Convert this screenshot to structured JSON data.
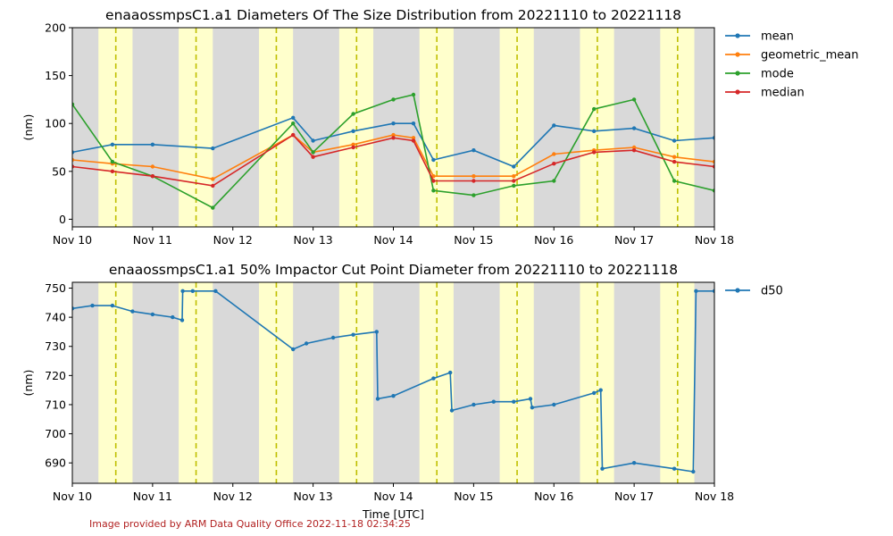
{
  "chart_data": [
    {
      "type": "line",
      "title": "enaaossmpsC1.a1 Diameters Of The Size Distribution from 20221110 to 20221118",
      "xlabel": "",
      "ylabel": "(nm)",
      "xlim": [
        "2022-11-10",
        "2022-11-18"
      ],
      "ylim": [
        -8,
        200
      ],
      "x_tick_labels": [
        "Nov 10",
        "Nov 11",
        "Nov 12",
        "Nov 13",
        "Nov 14",
        "Nov 15",
        "Nov 16",
        "Nov 17",
        "Nov 18"
      ],
      "y_ticks": [
        0,
        50,
        100,
        150,
        200
      ],
      "legend_position": "outside-right",
      "series": [
        {
          "name": "mean",
          "color": "#1f77b4",
          "values": [
            [
              "2022-11-10T00:00",
              70
            ],
            [
              "2022-11-10T12:00",
              78
            ],
            [
              "2022-11-11T00:00",
              78
            ],
            [
              "2022-11-11T18:00",
              74
            ],
            [
              "2022-11-12T18:00",
              106
            ],
            [
              "2022-11-13T00:00",
              82
            ],
            [
              "2022-11-13T12:00",
              92
            ],
            [
              "2022-11-14T00:00",
              100
            ],
            [
              "2022-11-14T06:00",
              100
            ],
            [
              "2022-11-14T12:00",
              62
            ],
            [
              "2022-11-15T00:00",
              72
            ],
            [
              "2022-11-15T12:00",
              55
            ],
            [
              "2022-11-16T00:00",
              98
            ],
            [
              "2022-11-16T12:00",
              92
            ],
            [
              "2022-11-17T00:00",
              95
            ],
            [
              "2022-11-17T12:00",
              82
            ],
            [
              "2022-11-18T00:00",
              85
            ]
          ]
        },
        {
          "name": "geometric_mean",
          "color": "#ff7f0e",
          "values": [
            [
              "2022-11-10T00:00",
              62
            ],
            [
              "2022-11-10T12:00",
              58
            ],
            [
              "2022-11-11T00:00",
              55
            ],
            [
              "2022-11-11T18:00",
              42
            ],
            [
              "2022-11-12T18:00",
              88
            ],
            [
              "2022-11-13T00:00",
              70
            ],
            [
              "2022-11-13T12:00",
              78
            ],
            [
              "2022-11-14T00:00",
              88
            ],
            [
              "2022-11-14T06:00",
              85
            ],
            [
              "2022-11-14T12:00",
              45
            ],
            [
              "2022-11-15T00:00",
              45
            ],
            [
              "2022-11-15T12:00",
              45
            ],
            [
              "2022-11-16T00:00",
              68
            ],
            [
              "2022-11-16T12:00",
              72
            ],
            [
              "2022-11-17T00:00",
              75
            ],
            [
              "2022-11-17T12:00",
              65
            ],
            [
              "2022-11-18T00:00",
              60
            ]
          ]
        },
        {
          "name": "mode",
          "color": "#2ca02c",
          "values": [
            [
              "2022-11-10T00:00",
              120
            ],
            [
              "2022-11-10T12:00",
              60
            ],
            [
              "2022-11-11T00:00",
              45
            ],
            [
              "2022-11-11T18:00",
              12
            ],
            [
              "2022-11-12T18:00",
              100
            ],
            [
              "2022-11-13T00:00",
              70
            ],
            [
              "2022-11-13T12:00",
              110
            ],
            [
              "2022-11-14T00:00",
              125
            ],
            [
              "2022-11-14T06:00",
              130
            ],
            [
              "2022-11-14T12:00",
              30
            ],
            [
              "2022-11-15T00:00",
              25
            ],
            [
              "2022-11-15T12:00",
              35
            ],
            [
              "2022-11-16T00:00",
              40
            ],
            [
              "2022-11-16T12:00",
              115
            ],
            [
              "2022-11-17T00:00",
              125
            ],
            [
              "2022-11-17T12:00",
              40
            ],
            [
              "2022-11-18T00:00",
              30
            ]
          ]
        },
        {
          "name": "median",
          "color": "#d62728",
          "values": [
            [
              "2022-11-10T00:00",
              55
            ],
            [
              "2022-11-10T12:00",
              50
            ],
            [
              "2022-11-11T00:00",
              45
            ],
            [
              "2022-11-11T18:00",
              35
            ],
            [
              "2022-11-12T18:00",
              88
            ],
            [
              "2022-11-13T00:00",
              65
            ],
            [
              "2022-11-13T12:00",
              75
            ],
            [
              "2022-11-14T00:00",
              85
            ],
            [
              "2022-11-14T06:00",
              82
            ],
            [
              "2022-11-14T12:00",
              40
            ],
            [
              "2022-11-15T00:00",
              40
            ],
            [
              "2022-11-15T12:00",
              40
            ],
            [
              "2022-11-16T00:00",
              58
            ],
            [
              "2022-11-16T12:00",
              70
            ],
            [
              "2022-11-17T00:00",
              72
            ],
            [
              "2022-11-17T12:00",
              60
            ],
            [
              "2022-11-18T00:00",
              55
            ]
          ]
        }
      ]
    },
    {
      "type": "line",
      "title": "enaaossmpsC1.a1 50% Impactor Cut Point Diameter from 20221110 to 20221118",
      "xlabel": "Time [UTC]",
      "ylabel": "(nm)",
      "xlim": [
        "2022-11-10",
        "2022-11-18"
      ],
      "ylim": [
        683,
        752
      ],
      "x_tick_labels": [
        "Nov 10",
        "Nov 11",
        "Nov 12",
        "Nov 13",
        "Nov 14",
        "Nov 15",
        "Nov 16",
        "Nov 17",
        "Nov 18"
      ],
      "y_ticks": [
        690,
        700,
        710,
        720,
        730,
        740,
        750
      ],
      "legend_position": "outside-right",
      "series": [
        {
          "name": "d50",
          "color": "#1f77b4",
          "values": [
            [
              "2022-11-10T00:00",
              743
            ],
            [
              "2022-11-10T06:00",
              744
            ],
            [
              "2022-11-10T12:00",
              744
            ],
            [
              "2022-11-10T18:00",
              742
            ],
            [
              "2022-11-11T00:00",
              741
            ],
            [
              "2022-11-11T06:00",
              740
            ],
            [
              "2022-11-11T08:50",
              739
            ],
            [
              "2022-11-11T09:00",
              749
            ],
            [
              "2022-11-11T12:00",
              749
            ],
            [
              "2022-11-11T18:50",
              749
            ],
            [
              "2022-11-12T18:00",
              729
            ],
            [
              "2022-11-12T22:00",
              731
            ],
            [
              "2022-11-13T06:00",
              733
            ],
            [
              "2022-11-13T12:00",
              734
            ],
            [
              "2022-11-13T19:00",
              735
            ],
            [
              "2022-11-13T19:20",
              712
            ],
            [
              "2022-11-14T00:00",
              713
            ],
            [
              "2022-11-14T12:00",
              719
            ],
            [
              "2022-11-14T17:00",
              721
            ],
            [
              "2022-11-14T17:30",
              708
            ],
            [
              "2022-11-15T00:00",
              710
            ],
            [
              "2022-11-15T06:00",
              711
            ],
            [
              "2022-11-15T12:00",
              711
            ],
            [
              "2022-11-15T17:00",
              712
            ],
            [
              "2022-11-15T17:30",
              709
            ],
            [
              "2022-11-16T00:00",
              710
            ],
            [
              "2022-11-16T12:00",
              714
            ],
            [
              "2022-11-16T14:00",
              715
            ],
            [
              "2022-11-16T14:30",
              688
            ],
            [
              "2022-11-17T00:00",
              690
            ],
            [
              "2022-11-17T12:00",
              688
            ],
            [
              "2022-11-17T17:40",
              687
            ],
            [
              "2022-11-17T18:30",
              749
            ],
            [
              "2022-11-18T00:00",
              749
            ]
          ]
        }
      ]
    }
  ],
  "footer": {
    "credit": "Image provided by ARM Data Quality Office 2022-11-18 02:34:25"
  }
}
